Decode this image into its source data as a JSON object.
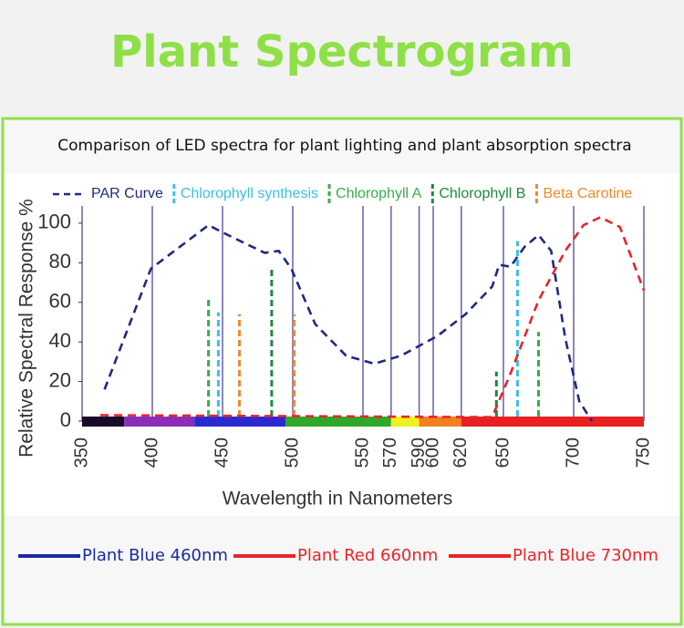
{
  "page_title": "Plant Spectrogram",
  "chart_data": {
    "type": "line",
    "title": "Comparison of LED spectra for plant lighting and plant absorption spectra",
    "x_label": "Wavelength in Nanometers",
    "y_label": "Relative Spectral Response %",
    "xlim": [
      350,
      750
    ],
    "ylim": [
      0,
      105
    ],
    "xticks": [
      350,
      400,
      450,
      500,
      550,
      570,
      590,
      600,
      620,
      650,
      700,
      750
    ],
    "yticks": [
      0,
      20,
      40,
      60,
      80,
      100
    ],
    "grid": true,
    "series": [
      {
        "name": "PAR Curve",
        "style": "curve",
        "color": "#1f2a80",
        "x": [
          366,
          399,
          440,
          451,
          480,
          490,
          499,
          516,
          538,
          558,
          577,
          603,
          623,
          642,
          647,
          655,
          665,
          675,
          684,
          694,
          704,
          713
        ],
        "values": [
          16,
          77,
          99,
          95,
          85,
          86,
          77,
          49,
          33,
          29,
          33,
          43,
          54,
          68,
          79,
          78,
          88,
          94,
          86,
          42,
          10,
          0
        ]
      },
      {
        "name": "Chlorophyll synthesis",
        "style": "marker",
        "color": "#3cc0e0",
        "x": [
          447,
          660
        ],
        "values": [
          55,
          91
        ]
      },
      {
        "name": "Chlorophyll A",
        "style": "marker",
        "color": "#35b04a",
        "x": [
          440,
          675
        ],
        "values": [
          63,
          45
        ]
      },
      {
        "name": "Chlorophyll B",
        "style": "marker",
        "color": "#1c8a3c",
        "x": [
          485,
          645
        ],
        "values": [
          77,
          25
        ]
      },
      {
        "name": "Beta Carotine",
        "style": "marker",
        "color": "#f08a2c",
        "x": [
          462,
          501
        ],
        "values": [
          54,
          54
        ]
      },
      {
        "style": "curve",
        "color": "#e8252a",
        "x": [
          363,
          642,
          655,
          675,
          694,
          707,
          719,
          733,
          750
        ],
        "values": [
          3,
          2,
          24,
          61,
          86,
          99,
          103,
          98,
          66
        ]
      }
    ],
    "spectrum_band": [
      {
        "from": 350,
        "to": 380,
        "color": "#1a0a2a"
      },
      {
        "from": 380,
        "to": 430,
        "color": "#8a2eb8"
      },
      {
        "from": 430,
        "to": 495,
        "color": "#2a2ad0"
      },
      {
        "from": 495,
        "to": 570,
        "color": "#2ea82a"
      },
      {
        "from": 570,
        "to": 590,
        "color": "#f0f020"
      },
      {
        "from": 590,
        "to": 620,
        "color": "#f08020"
      },
      {
        "from": 620,
        "to": 750,
        "color": "#e82020"
      }
    ]
  },
  "lamps": [
    {
      "label": "Plant Blue 460nm",
      "color": "#1a2aa0"
    },
    {
      "label": "Plant Red 660nm",
      "color": "#e8252a"
    },
    {
      "label": "Plant Blue 730nm",
      "color": "#e8252a"
    }
  ]
}
